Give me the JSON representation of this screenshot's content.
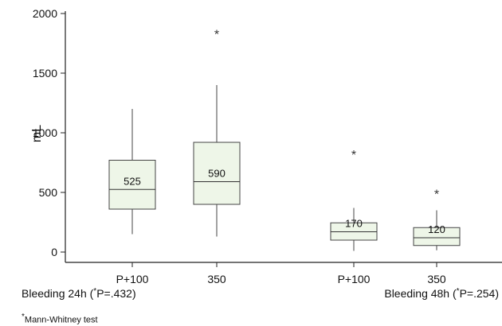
{
  "chart_data": {
    "type": "boxplot",
    "ylabel": "mL",
    "ylim": [
      0,
      2000
    ],
    "yticks": [
      0,
      500,
      1000,
      1500,
      2000
    ],
    "categories": [
      "P+100",
      "350",
      "P+100",
      "350"
    ],
    "groups": [
      {
        "label": "Bleeding 24h (",
        "p_text": "P=.432)",
        "members": [
          0,
          1
        ]
      },
      {
        "label": "Bleeding 48h (",
        "p_text": "P=.254)",
        "members": [
          2,
          3
        ]
      }
    ],
    "boxes": [
      {
        "category": "P+100",
        "min": 150,
        "q1": 360,
        "median": 525,
        "q3": 770,
        "max": 1200,
        "outliers": [],
        "median_label": "525"
      },
      {
        "category": "350",
        "min": 130,
        "q1": 400,
        "median": 590,
        "q3": 920,
        "max": 1400,
        "outliers": [
          1850
        ],
        "median_label": "590"
      },
      {
        "category": "P+100",
        "min": 10,
        "q1": 100,
        "median": 170,
        "q3": 245,
        "max": 370,
        "outliers": [
          840
        ],
        "median_label": "170"
      },
      {
        "category": "350",
        "min": 15,
        "q1": 55,
        "median": 120,
        "q3": 205,
        "max": 350,
        "outliers": [
          510
        ],
        "median_label": "120"
      }
    ],
    "outlier_marker": "*",
    "footnote_mark": "*",
    "footnote": "Mann-Whitney test",
    "grid": false
  }
}
